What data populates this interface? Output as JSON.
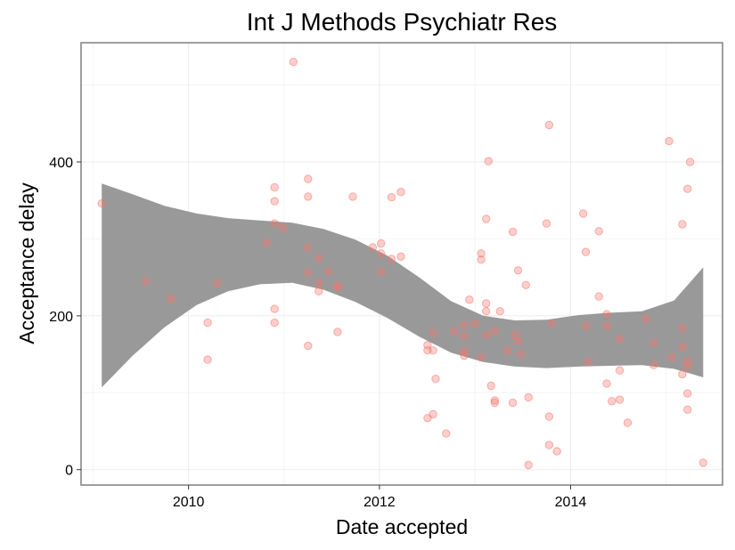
{
  "chart_data": {
    "type": "scatter",
    "title": "Int J Methods Psychiatr Res",
    "xlabel": "Date accepted",
    "ylabel": "Acceptance delay",
    "x_axis_type": "date",
    "xlim": [
      "2008-11-16",
      "2015-08-05"
    ],
    "ylim": [
      -20,
      555
    ],
    "x_ticks": [
      {
        "value": "2010-01-01",
        "label": "2010"
      },
      {
        "value": "2012-01-01",
        "label": "2012"
      },
      {
        "value": "2014-01-01",
        "label": "2014"
      }
    ],
    "y_ticks": [
      {
        "value": 0,
        "label": "0"
      },
      {
        "value": 200,
        "label": "200"
      },
      {
        "value": 400,
        "label": "400"
      }
    ],
    "grid": true,
    "point_color": "#F8766D",
    "band_color": "#999999",
    "points": [
      {
        "x": "2009-02-03",
        "y": 346
      },
      {
        "x": "2009-07-22",
        "y": 245
      },
      {
        "x": "2009-10-26",
        "y": 222
      },
      {
        "x": "2010-03-15",
        "y": 191
      },
      {
        "x": "2010-03-15",
        "y": 143
      },
      {
        "x": "2010-04-20",
        "y": 242
      },
      {
        "x": "2010-10-27",
        "y": 295
      },
      {
        "x": "2010-11-26",
        "y": 367
      },
      {
        "x": "2010-11-26",
        "y": 349
      },
      {
        "x": "2010-11-26",
        "y": 320
      },
      {
        "x": "2010-11-26",
        "y": 209
      },
      {
        "x": "2010-11-26",
        "y": 191
      },
      {
        "x": "2010-12-27",
        "y": 314
      },
      {
        "x": "2011-02-06",
        "y": 530
      },
      {
        "x": "2011-04-03",
        "y": 378
      },
      {
        "x": "2011-04-03",
        "y": 355
      },
      {
        "x": "2011-04-03",
        "y": 289
      },
      {
        "x": "2011-04-03",
        "y": 256
      },
      {
        "x": "2011-04-03",
        "y": 161
      },
      {
        "x": "2011-05-14",
        "y": 275
      },
      {
        "x": "2011-05-14",
        "y": 243
      },
      {
        "x": "2011-05-14",
        "y": 232
      },
      {
        "x": "2011-06-19",
        "y": 258
      },
      {
        "x": "2011-07-25",
        "y": 239
      },
      {
        "x": "2011-07-25",
        "y": 237
      },
      {
        "x": "2011-07-25",
        "y": 179
      },
      {
        "x": "2011-09-21",
        "y": 355
      },
      {
        "x": "2011-12-06",
        "y": 289
      },
      {
        "x": "2012-01-07",
        "y": 294
      },
      {
        "x": "2012-01-07",
        "y": 281
      },
      {
        "x": "2012-01-07",
        "y": 257
      },
      {
        "x": "2012-02-16",
        "y": 354
      },
      {
        "x": "2012-02-16",
        "y": 274
      },
      {
        "x": "2012-03-23",
        "y": 361
      },
      {
        "x": "2012-03-23",
        "y": 277
      },
      {
        "x": "2012-07-03",
        "y": 162
      },
      {
        "x": "2012-07-03",
        "y": 155
      },
      {
        "x": "2012-07-03",
        "y": 67
      },
      {
        "x": "2012-07-24",
        "y": 178
      },
      {
        "x": "2012-07-24",
        "y": 155
      },
      {
        "x": "2012-07-24",
        "y": 72
      },
      {
        "x": "2012-08-03",
        "y": 118
      },
      {
        "x": "2012-09-12",
        "y": 47
      },
      {
        "x": "2012-10-12",
        "y": 180
      },
      {
        "x": "2012-11-20",
        "y": 188
      },
      {
        "x": "2012-11-20",
        "y": 173
      },
      {
        "x": "2012-11-20",
        "y": 154
      },
      {
        "x": "2012-11-20",
        "y": 148
      },
      {
        "x": "2012-12-10",
        "y": 221
      },
      {
        "x": "2013-01-01",
        "y": 190
      },
      {
        "x": "2013-01-24",
        "y": 281
      },
      {
        "x": "2013-01-24",
        "y": 273
      },
      {
        "x": "2013-01-24",
        "y": 146
      },
      {
        "x": "2013-02-12",
        "y": 326
      },
      {
        "x": "2013-02-12",
        "y": 216
      },
      {
        "x": "2013-02-12",
        "y": 206
      },
      {
        "x": "2013-02-12",
        "y": 175
      },
      {
        "x": "2013-02-21",
        "y": 401
      },
      {
        "x": "2013-03-03",
        "y": 109
      },
      {
        "x": "2013-03-17",
        "y": 180
      },
      {
        "x": "2013-03-17",
        "y": 90
      },
      {
        "x": "2013-03-17",
        "y": 87
      },
      {
        "x": "2013-04-06",
        "y": 206
      },
      {
        "x": "2013-05-05",
        "y": 155
      },
      {
        "x": "2013-05-25",
        "y": 309
      },
      {
        "x": "2013-05-25",
        "y": 87
      },
      {
        "x": "2013-06-04",
        "y": 175
      },
      {
        "x": "2013-06-14",
        "y": 167
      },
      {
        "x": "2013-06-14",
        "y": 259
      },
      {
        "x": "2013-06-24",
        "y": 150
      },
      {
        "x": "2013-07-14",
        "y": 240
      },
      {
        "x": "2013-07-24",
        "y": 6
      },
      {
        "x": "2013-07-24",
        "y": 94
      },
      {
        "x": "2013-10-11",
        "y": 448
      },
      {
        "x": "2013-10-01",
        "y": 320
      },
      {
        "x": "2013-10-21",
        "y": 190
      },
      {
        "x": "2013-10-11",
        "y": 69
      },
      {
        "x": "2013-10-11",
        "y": 32
      },
      {
        "x": "2013-11-10",
        "y": 24
      },
      {
        "x": "2014-02-18",
        "y": 333
      },
      {
        "x": "2014-02-28",
        "y": 283
      },
      {
        "x": "2014-02-28",
        "y": 187
      },
      {
        "x": "2014-03-10",
        "y": 140
      },
      {
        "x": "2014-04-19",
        "y": 310
      },
      {
        "x": "2014-04-19",
        "y": 225
      },
      {
        "x": "2014-05-19",
        "y": 202
      },
      {
        "x": "2014-05-19",
        "y": 187
      },
      {
        "x": "2014-05-19",
        "y": 112
      },
      {
        "x": "2014-06-08",
        "y": 89
      },
      {
        "x": "2014-07-08",
        "y": 170
      },
      {
        "x": "2014-07-08",
        "y": 129
      },
      {
        "x": "2014-07-08",
        "y": 91
      },
      {
        "x": "2014-08-07",
        "y": 61
      },
      {
        "x": "2014-10-16",
        "y": 196
      },
      {
        "x": "2014-11-15",
        "y": 165
      },
      {
        "x": "2014-11-15",
        "y": 136
      },
      {
        "x": "2015-01-13",
        "y": 427
      },
      {
        "x": "2015-01-23",
        "y": 146
      },
      {
        "x": "2015-03-04",
        "y": 319
      },
      {
        "x": "2015-03-04",
        "y": 184
      },
      {
        "x": "2015-03-04",
        "y": 159
      },
      {
        "x": "2015-03-04",
        "y": 124
      },
      {
        "x": "2015-03-24",
        "y": 365
      },
      {
        "x": "2015-03-24",
        "y": 141
      },
      {
        "x": "2015-03-24",
        "y": 135
      },
      {
        "x": "2015-03-24",
        "y": 99
      },
      {
        "x": "2015-03-24",
        "y": 78
      },
      {
        "x": "2015-04-03",
        "y": 400
      },
      {
        "x": "2015-05-23",
        "y": 9
      }
    ],
    "smooth_band": [
      {
        "x": "2009-02-03",
        "lower": 107,
        "upper": 372
      },
      {
        "x": "2009-06-01",
        "lower": 148,
        "upper": 358
      },
      {
        "x": "2009-10-01",
        "lower": 185,
        "upper": 343
      },
      {
        "x": "2010-02-01",
        "lower": 214,
        "upper": 333
      },
      {
        "x": "2010-06-01",
        "lower": 232,
        "upper": 327
      },
      {
        "x": "2010-10-01",
        "lower": 241,
        "upper": 324
      },
      {
        "x": "2011-02-01",
        "lower": 243,
        "upper": 321
      },
      {
        "x": "2011-06-01",
        "lower": 234,
        "upper": 313
      },
      {
        "x": "2011-10-01",
        "lower": 218,
        "upper": 299
      },
      {
        "x": "2012-02-01",
        "lower": 197,
        "upper": 278
      },
      {
        "x": "2012-06-01",
        "lower": 173,
        "upper": 250
      },
      {
        "x": "2012-10-01",
        "lower": 152,
        "upper": 219
      },
      {
        "x": "2013-02-01",
        "lower": 140,
        "upper": 200
      },
      {
        "x": "2013-06-01",
        "lower": 134,
        "upper": 194
      },
      {
        "x": "2013-10-01",
        "lower": 132,
        "upper": 195
      },
      {
        "x": "2014-02-01",
        "lower": 134,
        "upper": 201
      },
      {
        "x": "2014-06-01",
        "lower": 135,
        "upper": 204
      },
      {
        "x": "2014-10-01",
        "lower": 136,
        "upper": 206
      },
      {
        "x": "2015-02-01",
        "lower": 131,
        "upper": 220
      },
      {
        "x": "2015-05-23",
        "lower": 120,
        "upper": 263
      }
    ]
  }
}
